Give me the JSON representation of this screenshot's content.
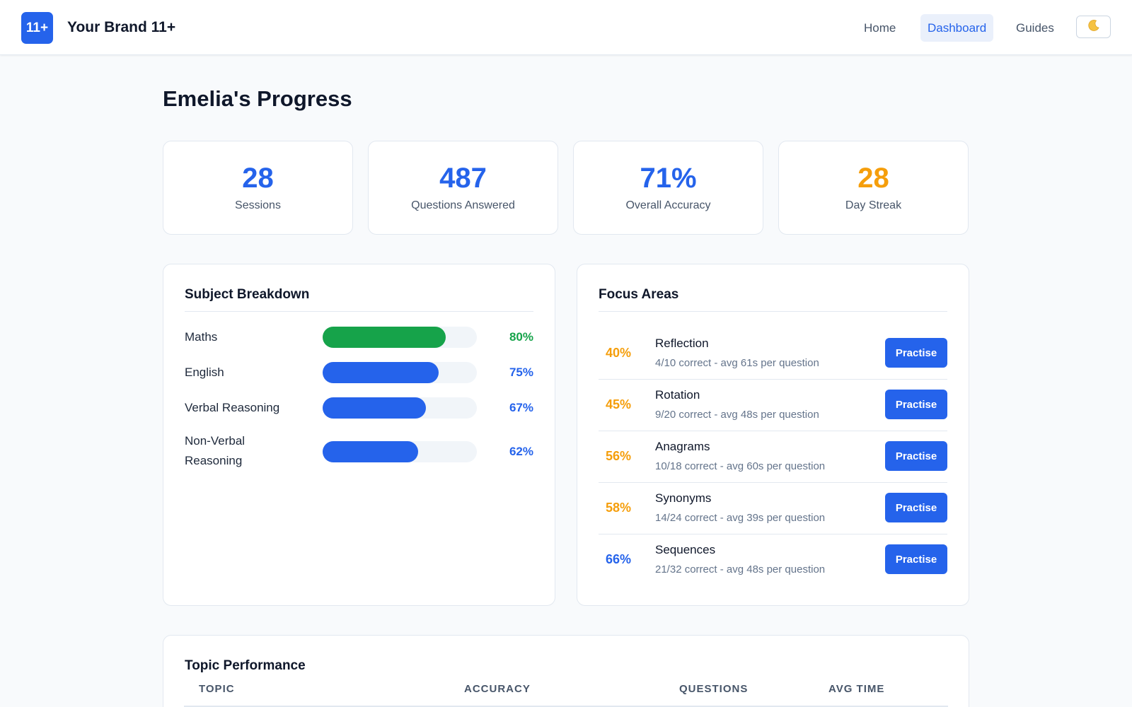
{
  "header": {
    "logo_text": "11+",
    "brand": "Your Brand 11+",
    "nav": [
      {
        "label": "Home",
        "active": false
      },
      {
        "label": "Dashboard",
        "active": true
      },
      {
        "label": "Guides",
        "active": false
      }
    ],
    "theme_toggle_icon": "moon-icon"
  },
  "page": {
    "title": "Emelia's Progress"
  },
  "stats": [
    {
      "value": "28",
      "label": "Sessions",
      "color": "#2563eb"
    },
    {
      "value": "487",
      "label": "Questions Answered",
      "color": "#2563eb"
    },
    {
      "value": "71%",
      "label": "Overall Accuracy",
      "color": "#2563eb"
    },
    {
      "value": "28",
      "label": "Day Streak",
      "color": "#f59e0b"
    }
  ],
  "subject_breakdown": {
    "title": "Subject Breakdown",
    "subjects": [
      {
        "name": "Maths",
        "pct_label": "80%",
        "fraction": 0.8,
        "color": "#16a34a"
      },
      {
        "name": "English",
        "pct_label": "75%",
        "fraction": 0.75,
        "color": "#2563eb"
      },
      {
        "name": "Verbal Reasoning",
        "pct_label": "67%",
        "fraction": 0.67,
        "color": "#2563eb"
      },
      {
        "name": "Non-Verbal Reasoning",
        "pct_label": "62%",
        "fraction": 0.62,
        "color": "#2563eb"
      }
    ]
  },
  "focus_areas": {
    "title": "Focus Areas",
    "button_label": "Practise",
    "items": [
      {
        "pct": "40%",
        "name": "Reflection",
        "detail": "4/10 correct - avg 61s per question",
        "color": "#f59e0b"
      },
      {
        "pct": "45%",
        "name": "Rotation",
        "detail": "9/20 correct - avg 48s per question",
        "color": "#f59e0b"
      },
      {
        "pct": "56%",
        "name": "Anagrams",
        "detail": "10/18 correct - avg 60s per question",
        "color": "#f59e0b"
      },
      {
        "pct": "58%",
        "name": "Synonyms",
        "detail": "14/24 correct - avg 39s per question",
        "color": "#f59e0b"
      },
      {
        "pct": "66%",
        "name": "Sequences",
        "detail": "21/32 correct - avg 48s per question",
        "color": "#2563eb"
      }
    ]
  },
  "topic_performance": {
    "title": "Topic Performance",
    "columns": [
      "TOPIC",
      "ACCURACY",
      "QUESTIONS",
      "AVG TIME"
    ]
  }
}
